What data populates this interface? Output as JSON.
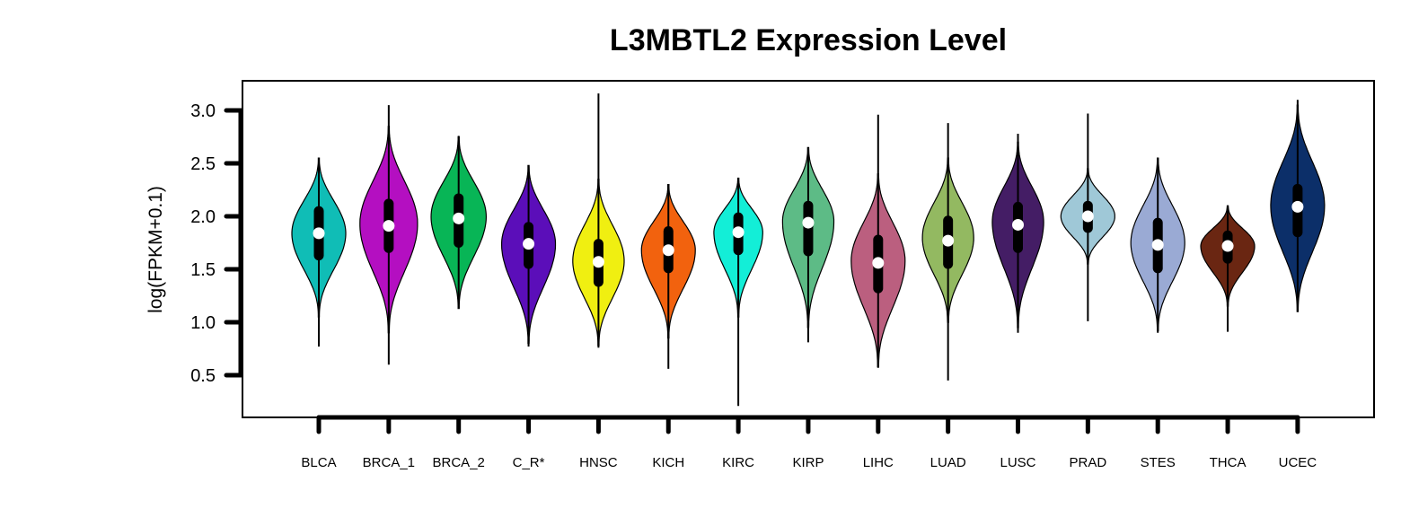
{
  "chart_data": {
    "type": "violin",
    "title": "L3MBTL2 Expression Level",
    "xlabel": "",
    "ylabel": "log(FPKM+0.1)",
    "ylim": [
      0.1,
      3.25
    ],
    "yticks": [
      0.5,
      1.0,
      1.5,
      2.0,
      2.5,
      3.0
    ],
    "ytick_labels": [
      "0.5",
      "1.0",
      "1.5",
      "2.0",
      "2.5",
      "3.0"
    ],
    "grid": false,
    "legend": "none",
    "categories": [
      "BLCA",
      "BRCA_1",
      "BRCA_2",
      "C_R*",
      "HNSC",
      "KICH",
      "KIRC",
      "KIRP",
      "LIHC",
      "LUAD",
      "LUSC",
      "PRAD",
      "STES",
      "THCA",
      "UCEC"
    ],
    "series": [
      {
        "category": "BLCA",
        "color": "#10bdb6",
        "min": 0.77,
        "q1": 1.63,
        "median": 1.84,
        "q3": 2.05,
        "max": 2.55,
        "vmin": 1.05,
        "vmax": 2.55,
        "mode": 1.84,
        "width": 0.42
      },
      {
        "category": "BRCA_1",
        "color": "#b40fc1",
        "min": 0.6,
        "q1": 1.7,
        "median": 1.91,
        "q3": 2.12,
        "max": 3.05,
        "vmin": 0.9,
        "vmax": 2.85,
        "mode": 1.93,
        "width": 0.45
      },
      {
        "category": "BRCA_2",
        "color": "#08b556",
        "min": 1.13,
        "q1": 1.75,
        "median": 1.98,
        "q3": 2.17,
        "max": 2.76,
        "vmin": 1.13,
        "vmax": 2.75,
        "mode": 2.0,
        "width": 0.43
      },
      {
        "category": "C_R*",
        "color": "#5b0eb9",
        "min": 0.77,
        "q1": 1.55,
        "median": 1.74,
        "q3": 1.9,
        "max": 2.48,
        "vmin": 0.8,
        "vmax": 2.48,
        "mode": 1.74,
        "width": 0.42
      },
      {
        "category": "HNSC",
        "color": "#f0ef11",
        "min": 0.76,
        "q1": 1.38,
        "median": 1.57,
        "q3": 1.74,
        "max": 3.16,
        "vmin": 0.78,
        "vmax": 2.35,
        "mode": 1.58,
        "width": 0.4
      },
      {
        "category": "KICH",
        "color": "#f2620e",
        "min": 0.56,
        "q1": 1.51,
        "median": 1.68,
        "q3": 1.86,
        "max": 2.3,
        "vmin": 0.85,
        "vmax": 2.3,
        "mode": 1.68,
        "width": 0.42
      },
      {
        "category": "KIRC",
        "color": "#13eed7",
        "min": 0.21,
        "q1": 1.68,
        "median": 1.85,
        "q3": 1.99,
        "max": 2.36,
        "vmin": 1.05,
        "vmax": 2.36,
        "mode": 1.85,
        "width": 0.38
      },
      {
        "category": "KIRP",
        "color": "#5dbb86",
        "min": 0.81,
        "q1": 1.67,
        "median": 1.94,
        "q3": 2.1,
        "max": 2.65,
        "vmin": 0.95,
        "vmax": 2.65,
        "mode": 1.95,
        "width": 0.4
      },
      {
        "category": "LIHC",
        "color": "#bb5f7f",
        "min": 0.57,
        "q1": 1.32,
        "median": 1.56,
        "q3": 1.78,
        "max": 2.96,
        "vmin": 0.58,
        "vmax": 2.4,
        "mode": 1.58,
        "width": 0.42
      },
      {
        "category": "LUAD",
        "color": "#93b961",
        "min": 0.45,
        "q1": 1.55,
        "median": 1.77,
        "q3": 1.96,
        "max": 2.88,
        "vmin": 1.0,
        "vmax": 2.55,
        "mode": 1.8,
        "width": 0.4
      },
      {
        "category": "LUSC",
        "color": "#441d65",
        "min": 0.9,
        "q1": 1.7,
        "median": 1.92,
        "q3": 2.09,
        "max": 2.78,
        "vmin": 0.95,
        "vmax": 2.7,
        "mode": 1.95,
        "width": 0.4
      },
      {
        "category": "PRAD",
        "color": "#9fc8d7",
        "min": 1.01,
        "q1": 1.89,
        "median": 2.0,
        "q3": 2.1,
        "max": 2.97,
        "vmin": 1.55,
        "vmax": 2.45,
        "mode": 2.0,
        "width": 0.42
      },
      {
        "category": "STES",
        "color": "#9aaad4",
        "min": 0.9,
        "q1": 1.51,
        "median": 1.73,
        "q3": 1.94,
        "max": 2.55,
        "vmin": 0.92,
        "vmax": 2.55,
        "mode": 1.75,
        "width": 0.42
      },
      {
        "category": "THCA",
        "color": "#6a2612",
        "min": 0.91,
        "q1": 1.6,
        "median": 1.72,
        "q3": 1.82,
        "max": 2.1,
        "vmin": 1.15,
        "vmax": 2.1,
        "mode": 1.72,
        "width": 0.42
      },
      {
        "category": "UCEC",
        "color": "#0c2f69",
        "min": 1.1,
        "q1": 1.85,
        "median": 2.09,
        "q3": 2.26,
        "max": 3.1,
        "vmin": 1.1,
        "vmax": 3.05,
        "mode": 2.1,
        "width": 0.42
      }
    ]
  }
}
